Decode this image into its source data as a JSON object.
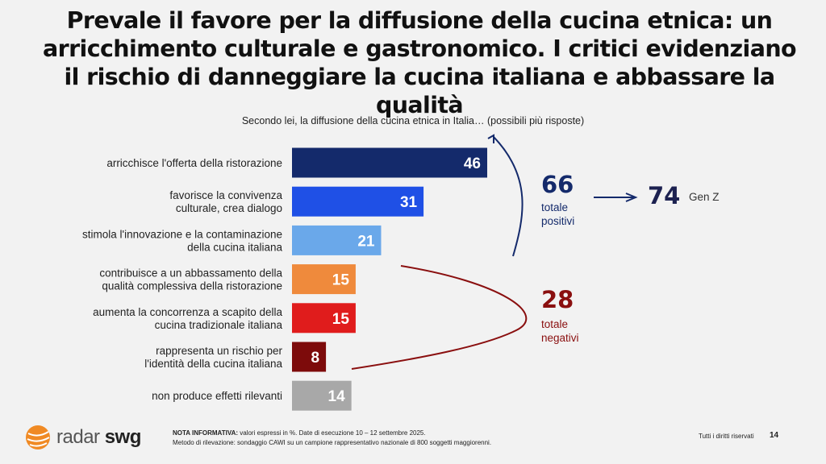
{
  "title": "Prevale il favore per la diffusione della cucina etnica: un arricchimento culturale e gastronomico. I critici evidenziano il rischio di danneggiare la cucina italiana e abbassare la qualità",
  "chart_data": {
    "type": "bar",
    "orientation": "horizontal",
    "title": "Secondo lei, la diffusione della cucina etnica in Italia… (possibili più risposte)",
    "categories": [
      [
        "arricchisce l'offerta della ristorazione"
      ],
      [
        "favorisce la convivenza",
        "culturale, crea dialogo"
      ],
      [
        "stimola l'innovazione e la contaminazione",
        "della cucina italiana"
      ],
      [
        "contribuisce a un abbassamento della",
        "qualità complessiva della ristorazione"
      ],
      [
        "aumenta la concorrenza a scapito della",
        "cucina tradizionale italiana"
      ],
      [
        "rappresenta un rischio per",
        "l'identità della cucina italiana"
      ],
      [
        "non produce effetti rilevanti"
      ]
    ],
    "values": [
      46,
      31,
      21,
      15,
      15,
      8,
      14
    ],
    "colors": [
      "#142a6b",
      "#1f50e6",
      "#6aa8ea",
      "#ef8a3c",
      "#e01c1c",
      "#7d0b0b",
      "#a8a8a8"
    ],
    "xlim": [
      0,
      50
    ],
    "annotations": {
      "positive": {
        "value": "66",
        "label": [
          "totale",
          "positivi"
        ],
        "color": "#142a6b"
      },
      "negative": {
        "value": "28",
        "label": [
          "totale",
          "negativi"
        ],
        "color": "#8a0f0f"
      },
      "genz": {
        "value": "74",
        "label": "Gen Z",
        "color": "#1c2150"
      }
    }
  },
  "footer": {
    "note_bold": "NOTA INFORMATIVA:",
    "note": " valori espressi in %. Date di esecuzione 10 – 12 settembre 2025.",
    "method": "Metodo di rilevazione: sondaggio CAWI su un campione rappresentativo nazionale di 800 soggetti maggiorenni.",
    "rights": "Tutti i diritti riservati",
    "page": "14",
    "logo_a": "radar",
    "logo_b": "swg"
  }
}
